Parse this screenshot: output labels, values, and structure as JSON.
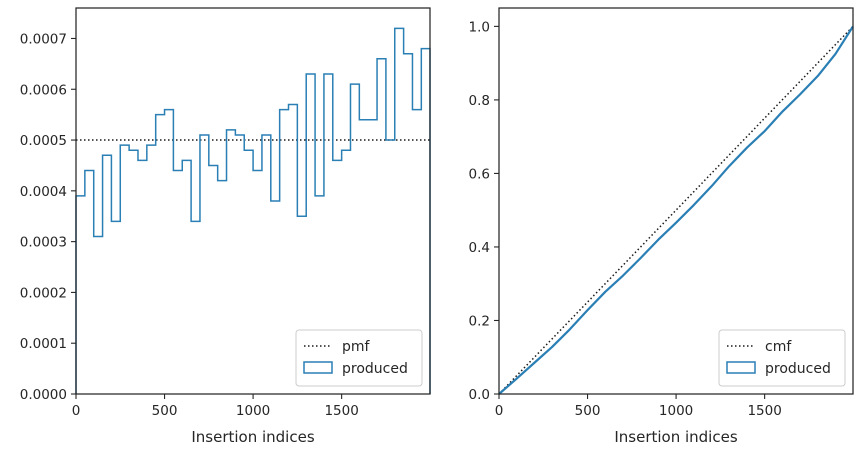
{
  "chart_data": [
    {
      "type": "step",
      "xlabel": "Insertion indices",
      "ylabel": "",
      "xlim": [
        0,
        1999
      ],
      "ylim": [
        0,
        0.00076
      ],
      "xticks": [
        0,
        500,
        1000,
        1500
      ],
      "xtick_labels": [
        "0",
        "500",
        "1000",
        "1500"
      ],
      "yticks": [
        0,
        0.0001,
        0.0002,
        0.0003,
        0.0004,
        0.0005,
        0.0006,
        0.0007
      ],
      "ytick_labels": [
        "0.0000",
        "0.0001",
        "0.0002",
        "0.0003",
        "0.0004",
        "0.0005",
        "0.0006",
        "0.0007"
      ],
      "grid": false,
      "legend_position": "lower-right",
      "legend": [
        {
          "label": "pmf",
          "style": "dotted-line",
          "color": "#1a1a1a"
        },
        {
          "label": "produced",
          "style": "step-patch",
          "color": "#2a7fb5"
        }
      ],
      "series": [
        {
          "name": "pmf",
          "style": "dotted",
          "color": "#1a1a1a",
          "value": 0.0005
        },
        {
          "name": "produced",
          "style": "step",
          "color": "#2a7fb5",
          "bin_edges": [
            0,
            50,
            100,
            150,
            200,
            250,
            300,
            350,
            400,
            450,
            500,
            550,
            600,
            650,
            700,
            750,
            800,
            850,
            900,
            950,
            1000,
            1050,
            1100,
            1150,
            1200,
            1250,
            1300,
            1350,
            1400,
            1450,
            1500,
            1550,
            1600,
            1650,
            1700,
            1750,
            1800,
            1850,
            1900,
            1950,
            1999
          ],
          "values": [
            0.00039,
            0.00044,
            0.00031,
            0.00047,
            0.00034,
            0.00049,
            0.00048,
            0.00046,
            0.00049,
            0.00055,
            0.00056,
            0.00044,
            0.00046,
            0.00034,
            0.00051,
            0.00045,
            0.00042,
            0.00052,
            0.00051,
            0.00048,
            0.00044,
            0.00051,
            0.00038,
            0.00056,
            0.00057,
            0.00035,
            0.00063,
            0.00039,
            0.00063,
            0.00046,
            0.00048,
            0.00061,
            0.00054,
            0.00054,
            0.00066,
            0.0005,
            0.00072,
            0.00067,
            0.00056,
            0.00068
          ]
        }
      ]
    },
    {
      "type": "line",
      "xlabel": "Insertion indices",
      "ylabel": "",
      "xlim": [
        0,
        1999
      ],
      "ylim": [
        0,
        1.05
      ],
      "xticks": [
        0,
        500,
        1000,
        1500
      ],
      "xtick_labels": [
        "0",
        "500",
        "1000",
        "1500"
      ],
      "yticks": [
        0,
        0.2,
        0.4,
        0.6,
        0.8,
        1.0
      ],
      "ytick_labels": [
        "0.0",
        "0.2",
        "0.4",
        "0.6",
        "0.8",
        "1.0"
      ],
      "grid": false,
      "legend_position": "lower-right",
      "legend": [
        {
          "label": "cmf",
          "style": "dotted-line",
          "color": "#1a1a1a"
        },
        {
          "label": "produced",
          "style": "step-patch",
          "color": "#2a7fb5"
        }
      ],
      "series": [
        {
          "name": "cmf",
          "style": "dotted",
          "color": "#1a1a1a",
          "x": [
            0,
            1999
          ],
          "y": [
            0,
            1.0
          ]
        },
        {
          "name": "produced",
          "style": "line",
          "color": "#2a7fb5",
          "x": [
            0,
            100,
            200,
            300,
            400,
            500,
            600,
            700,
            800,
            900,
            1000,
            1100,
            1200,
            1300,
            1400,
            1500,
            1600,
            1700,
            1800,
            1900,
            1999
          ],
          "y": [
            0,
            0.042,
            0.085,
            0.128,
            0.176,
            0.228,
            0.278,
            0.322,
            0.37,
            0.42,
            0.466,
            0.514,
            0.565,
            0.62,
            0.67,
            0.715,
            0.768,
            0.815,
            0.865,
            0.925,
            1.0
          ]
        }
      ]
    }
  ]
}
